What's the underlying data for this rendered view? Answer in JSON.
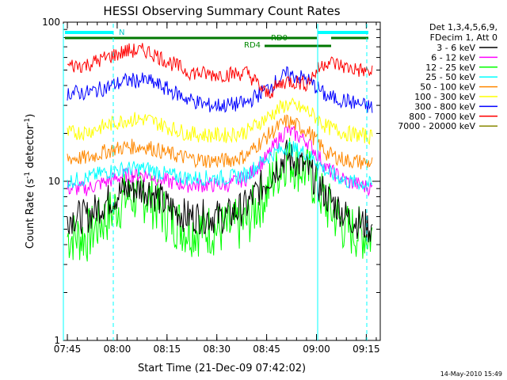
{
  "chart_data": {
    "type": "line",
    "title": "HESSI Observing Summary Count Rates",
    "xlabel": "Start Time (21-Dec-09 07:42:02)",
    "ylabel_main": "Count Rate (s",
    "ylabel_sup": "-1",
    "ylabel_rest": " detector",
    "ylabel_end": ")",
    "yscale": "log",
    "ylim": [
      1,
      100
    ],
    "xlim_minutes": [
      7.73,
      9.32
    ],
    "y_ticks": [
      {
        "value": 1,
        "label": "1"
      },
      {
        "value": 10,
        "label": "10"
      },
      {
        "value": 100,
        "label": "100"
      }
    ],
    "x_ticks": [
      {
        "value": 7.75,
        "label": "07:45"
      },
      {
        "value": 8.0,
        "label": "08:00"
      },
      {
        "value": 8.25,
        "label": "08:15"
      },
      {
        "value": 8.5,
        "label": "08:30"
      },
      {
        "value": 8.75,
        "label": "08:45"
      },
      {
        "value": 9.0,
        "label": "09:00"
      },
      {
        "value": 9.25,
        "label": "09:15"
      }
    ],
    "legend": {
      "header1": "Det 1,3,4,5,6,9,",
      "header2": "FDecim 1, Att 0",
      "placement": "right"
    },
    "series": [
      {
        "name": "3 - 6 keV",
        "color": "#000000",
        "x": [
          7.75,
          7.85,
          7.95,
          8.05,
          8.15,
          8.25,
          8.35,
          8.45,
          8.55,
          8.65,
          8.75,
          8.85,
          8.95,
          9.05,
          9.15,
          9.28
        ],
        "values": [
          6,
          6,
          7.5,
          9,
          9,
          7,
          6,
          6,
          6,
          7,
          10,
          14.5,
          12,
          8,
          6,
          5
        ]
      },
      {
        "name": "6 - 12 keV",
        "color": "#ff00ff",
        "x": [
          7.75,
          7.85,
          7.95,
          8.05,
          8.15,
          8.25,
          8.35,
          8.45,
          8.55,
          8.65,
          8.75,
          8.85,
          8.95,
          9.05,
          9.15,
          9.28
        ],
        "values": [
          9,
          9,
          10,
          11,
          11,
          10,
          9.5,
          9.5,
          9.5,
          10.5,
          14,
          21,
          18,
          12,
          10,
          9
        ]
      },
      {
        "name": "12 - 25 keV",
        "color": "#00ff00",
        "x": [
          7.75,
          7.85,
          7.95,
          8.05,
          8.15,
          8.25,
          8.35,
          8.45,
          8.55,
          8.65,
          8.75,
          8.85,
          8.95,
          9.05,
          9.15,
          9.28
        ],
        "values": [
          4.5,
          4.5,
          6,
          8,
          8,
          6,
          5,
          5,
          5,
          5.5,
          8.5,
          14,
          11.5,
          7,
          5,
          4.5
        ]
      },
      {
        "name": "25 - 50 keV",
        "color": "#00ffff",
        "x": [
          7.75,
          7.85,
          7.95,
          8.05,
          8.15,
          8.25,
          8.35,
          8.45,
          8.55,
          8.65,
          8.75,
          8.85,
          8.95,
          9.05,
          9.15,
          9.28
        ],
        "values": [
          10,
          10.5,
          11.5,
          12,
          12,
          11,
          10.5,
          10.5,
          10.5,
          11,
          14,
          16.5,
          15,
          11.5,
          10,
          9.5
        ]
      },
      {
        "name": "50 - 100 keV",
        "color": "#ff8800",
        "x": [
          7.75,
          7.85,
          7.95,
          8.05,
          8.15,
          8.25,
          8.35,
          8.45,
          8.55,
          8.65,
          8.75,
          8.85,
          8.95,
          9.05,
          9.15,
          9.28
        ],
        "values": [
          14,
          14,
          15.5,
          16.5,
          16.5,
          15,
          14,
          13.5,
          13.5,
          14.5,
          19,
          24,
          21,
          15,
          13.5,
          13
        ]
      },
      {
        "name": "100 - 300 keV",
        "color": "#ffff00",
        "x": [
          7.75,
          7.85,
          7.95,
          8.05,
          8.15,
          8.25,
          8.35,
          8.45,
          8.55,
          8.65,
          8.75,
          8.85,
          8.95,
          9.05,
          9.15,
          9.28
        ],
        "values": [
          20,
          20.5,
          22.5,
          24.5,
          24.5,
          22,
          20,
          19.5,
          19.5,
          20.5,
          25,
          30.5,
          28,
          22,
          20,
          19
        ]
      },
      {
        "name": "300 - 800 keV",
        "color": "#0000ff",
        "x": [
          7.75,
          7.85,
          7.95,
          8.05,
          8.15,
          8.25,
          8.35,
          8.45,
          8.55,
          8.65,
          8.75,
          8.85,
          8.95,
          9.05,
          9.15,
          9.28
        ],
        "values": [
          36,
          36,
          39,
          43,
          43,
          38,
          33,
          30,
          30,
          31,
          38,
          47,
          44,
          34,
          32,
          29
        ]
      },
      {
        "name": "800 - 7000 keV",
        "color": "#ff0000",
        "x": [
          7.75,
          7.85,
          7.95,
          8.05,
          8.15,
          8.25,
          8.35,
          8.45,
          8.55,
          8.65,
          8.75,
          8.85,
          8.95,
          9.05,
          9.15,
          9.28
        ],
        "values": [
          53,
          54,
          60,
          66,
          66,
          57,
          49,
          47,
          47,
          48,
          35,
          43,
          41,
          57,
          52,
          48
        ]
      },
      {
        "name": "7000 - 20000 keV",
        "color": "#888800",
        "x": [],
        "values": []
      }
    ],
    "annotations": [
      {
        "text": "N",
        "color": "#00c8c8"
      },
      {
        "text": "RD4",
        "color": "#008800"
      },
      {
        "text": "RD0",
        "color": "#008800"
      }
    ]
  },
  "footer": {
    "timestamp": "14-May-2010 15:49"
  }
}
